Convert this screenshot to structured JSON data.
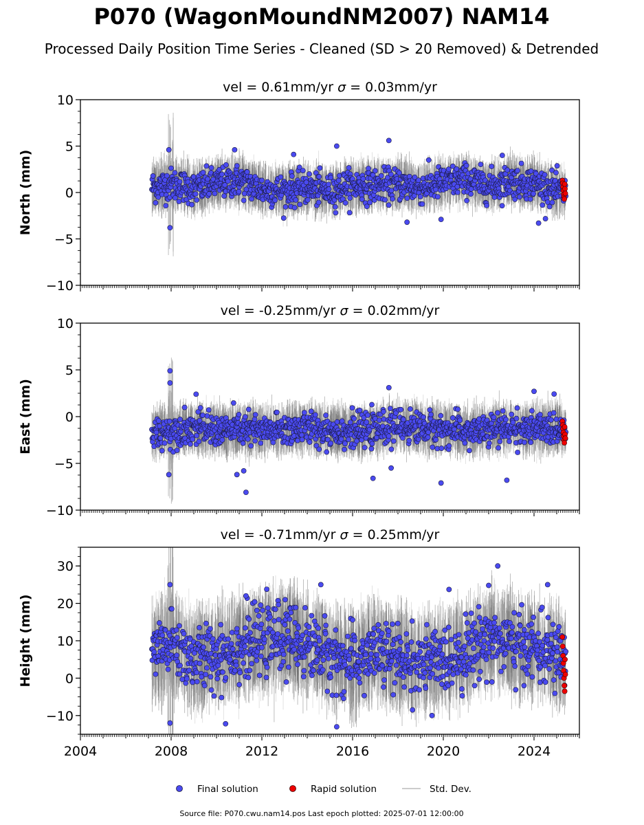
{
  "title": "P070 (WagonMoundNM2007) NAM14",
  "subtitle": "Processed Daily Position Time Series - Cleaned (SD > 20 Removed) & Detrended",
  "footer": "Source file: P070.cwu.nam14.pos  Last epoch plotted: 2025-07-01 12:00:00",
  "colors": {
    "final": "#4a4af0",
    "rapid": "#ee0000",
    "stddev": "#7f7f7f",
    "edge": "#1a1a40"
  },
  "legend": {
    "final": "Final solution",
    "rapid": "Rapid solution",
    "stddev": "Std. Dev."
  },
  "chart_data": [
    {
      "type": "scatter",
      "title_text": "vel = 0.61mm/yr",
      "sigma_text": " = 0.03mm/yr",
      "ylabel": "North (mm)",
      "xlim": [
        2004.0,
        2026.0
      ],
      "ylim": [
        -10,
        10
      ],
      "yticks": [
        -10,
        -5,
        0,
        5,
        10
      ],
      "ytick_labels": [
        "−10",
        "−5",
        "0",
        "5",
        "10"
      ],
      "x_start": 2007.15,
      "x_end": 2025.4,
      "series": [
        {
          "name": "Final solution",
          "trend_y": [
            [
              2007.2,
              0.6
            ],
            [
              2008.0,
              0.9
            ],
            [
              2009.0,
              0.4
            ],
            [
              2010.0,
              1.0
            ],
            [
              2011.0,
              1.3
            ],
            [
              2012.0,
              0.3
            ],
            [
              2013.0,
              0.2
            ],
            [
              2014.0,
              0.5
            ],
            [
              2015.0,
              0.1
            ],
            [
              2016.0,
              0.8
            ],
            [
              2017.0,
              0.7
            ],
            [
              2018.0,
              0.9
            ],
            [
              2019.0,
              0.5
            ],
            [
              2020.0,
              1.1
            ],
            [
              2021.0,
              1.4
            ],
            [
              2022.0,
              0.7
            ],
            [
              2023.0,
              1.2
            ],
            [
              2024.0,
              1.0
            ],
            [
              2025.0,
              0.2
            ],
            [
              2025.4,
              0.0
            ]
          ],
          "scatter_sd": 1.0,
          "outliers": [
            [
              2007.95,
              -3.8
            ],
            [
              2007.9,
              4.6
            ],
            [
              2010.8,
              4.6
            ],
            [
              2013.4,
              4.1
            ],
            [
              2015.3,
              5.0
            ],
            [
              2017.6,
              5.6
            ],
            [
              2018.4,
              -3.2
            ],
            [
              2019.9,
              -2.9
            ],
            [
              2022.6,
              4.0
            ],
            [
              2024.2,
              -3.3
            ]
          ]
        },
        {
          "name": "Rapid solution",
          "x_range": [
            2025.25,
            2025.38
          ],
          "y_values": [
            1.3,
            1.0,
            0.6,
            0.2,
            -0.2,
            -0.5,
            -0.7,
            0.9,
            0.4,
            -0.1
          ]
        }
      ]
    },
    {
      "type": "scatter",
      "title_text": "vel = -0.25mm/yr",
      "sigma_text": " = 0.02mm/yr",
      "ylabel": "East (mm)",
      "xlim": [
        2004.0,
        2026.0
      ],
      "ylim": [
        -10,
        10
      ],
      "yticks": [
        -10,
        -5,
        0,
        5,
        10
      ],
      "ytick_labels": [
        "−10",
        "−5",
        "0",
        "5",
        "10"
      ],
      "x_start": 2007.15,
      "x_end": 2025.4,
      "series": [
        {
          "name": "Final solution",
          "trend_y": [
            [
              2007.2,
              -1.8
            ],
            [
              2008.0,
              -1.5
            ],
            [
              2009.0,
              -1.2
            ],
            [
              2010.0,
              -1.5
            ],
            [
              2011.0,
              -1.3
            ],
            [
              2012.0,
              -1.6
            ],
            [
              2013.0,
              -1.4
            ],
            [
              2014.0,
              -1.2
            ],
            [
              2015.0,
              -1.5
            ],
            [
              2016.0,
              -1.6
            ],
            [
              2017.0,
              -1.4
            ],
            [
              2018.0,
              -1.0
            ],
            [
              2019.0,
              -1.2
            ],
            [
              2020.0,
              -1.4
            ],
            [
              2021.0,
              -1.6
            ],
            [
              2022.0,
              -1.5
            ],
            [
              2023.0,
              -1.2
            ],
            [
              2024.0,
              -1.4
            ],
            [
              2025.0,
              -1.2
            ],
            [
              2025.4,
              -1.5
            ]
          ],
          "scatter_sd": 1.0,
          "outliers": [
            [
              2007.95,
              4.9
            ],
            [
              2007.95,
              3.6
            ],
            [
              2007.9,
              -6.2
            ],
            [
              2010.9,
              -6.2
            ],
            [
              2011.2,
              -5.8
            ],
            [
              2011.3,
              -8.1
            ],
            [
              2017.6,
              3.1
            ],
            [
              2017.7,
              -5.5
            ],
            [
              2019.9,
              -7.1
            ],
            [
              2016.9,
              -6.6
            ],
            [
              2022.8,
              -6.8
            ],
            [
              2024.0,
              2.7
            ],
            [
              2009.1,
              2.4
            ]
          ]
        },
        {
          "name": "Rapid solution",
          "x_range": [
            2025.25,
            2025.38
          ],
          "y_values": [
            -0.5,
            -0.9,
            -1.3,
            -1.7,
            -2.1,
            -2.5,
            -2.8,
            -1.1,
            -1.9,
            -2.3
          ]
        }
      ]
    },
    {
      "type": "scatter",
      "title_text": "vel = -0.71mm/yr",
      "sigma_text": " = 0.25mm/yr",
      "ylabel": "Height (mm)",
      "xlim": [
        2004.0,
        2026.0
      ],
      "ylim": [
        -15,
        35
      ],
      "yticks": [
        -10,
        0,
        10,
        20,
        30
      ],
      "ytick_labels": [
        "−10",
        "0",
        "10",
        "20",
        "30"
      ],
      "xtick_labels": [
        "2004",
        "2008",
        "2012",
        "2016",
        "2020",
        "2024"
      ],
      "xticks": [
        2004,
        2008,
        2012,
        2016,
        2020,
        2024
      ],
      "x_start": 2007.15,
      "x_end": 2025.4,
      "series": [
        {
          "name": "Final solution",
          "trend_y": [
            [
              2007.2,
              7
            ],
            [
              2008.0,
              9
            ],
            [
              2009.0,
              5
            ],
            [
              2010.0,
              6
            ],
            [
              2011.0,
              8
            ],
            [
              2012.0,
              10
            ],
            [
              2013.0,
              11
            ],
            [
              2014.0,
              9
            ],
            [
              2015.0,
              6
            ],
            [
              2016.0,
              4
            ],
            [
              2017.0,
              7
            ],
            [
              2018.0,
              5
            ],
            [
              2019.0,
              4
            ],
            [
              2020.0,
              5
            ],
            [
              2021.0,
              7
            ],
            [
              2022.0,
              11
            ],
            [
              2023.0,
              9
            ],
            [
              2024.0,
              8
            ],
            [
              2025.0,
              6
            ],
            [
              2025.4,
              5
            ]
          ],
          "scatter_sd": 5.0,
          "outliers": [
            [
              2007.95,
              25
            ],
            [
              2007.95,
              -12
            ],
            [
              2022.4,
              30
            ],
            [
              2022.0,
              24.8
            ],
            [
              2024.6,
              25
            ],
            [
              2014.6,
              25
            ],
            [
              2011.3,
              22
            ],
            [
              2015.3,
              -13
            ],
            [
              2010.4,
              -12.2
            ],
            [
              2019.5,
              -10
            ]
          ]
        },
        {
          "name": "Rapid solution",
          "x_range": [
            2025.25,
            2025.38
          ],
          "y_values": [
            11,
            8.5,
            6,
            4,
            2,
            0,
            -2,
            -3.5,
            5,
            1
          ]
        }
      ]
    }
  ]
}
